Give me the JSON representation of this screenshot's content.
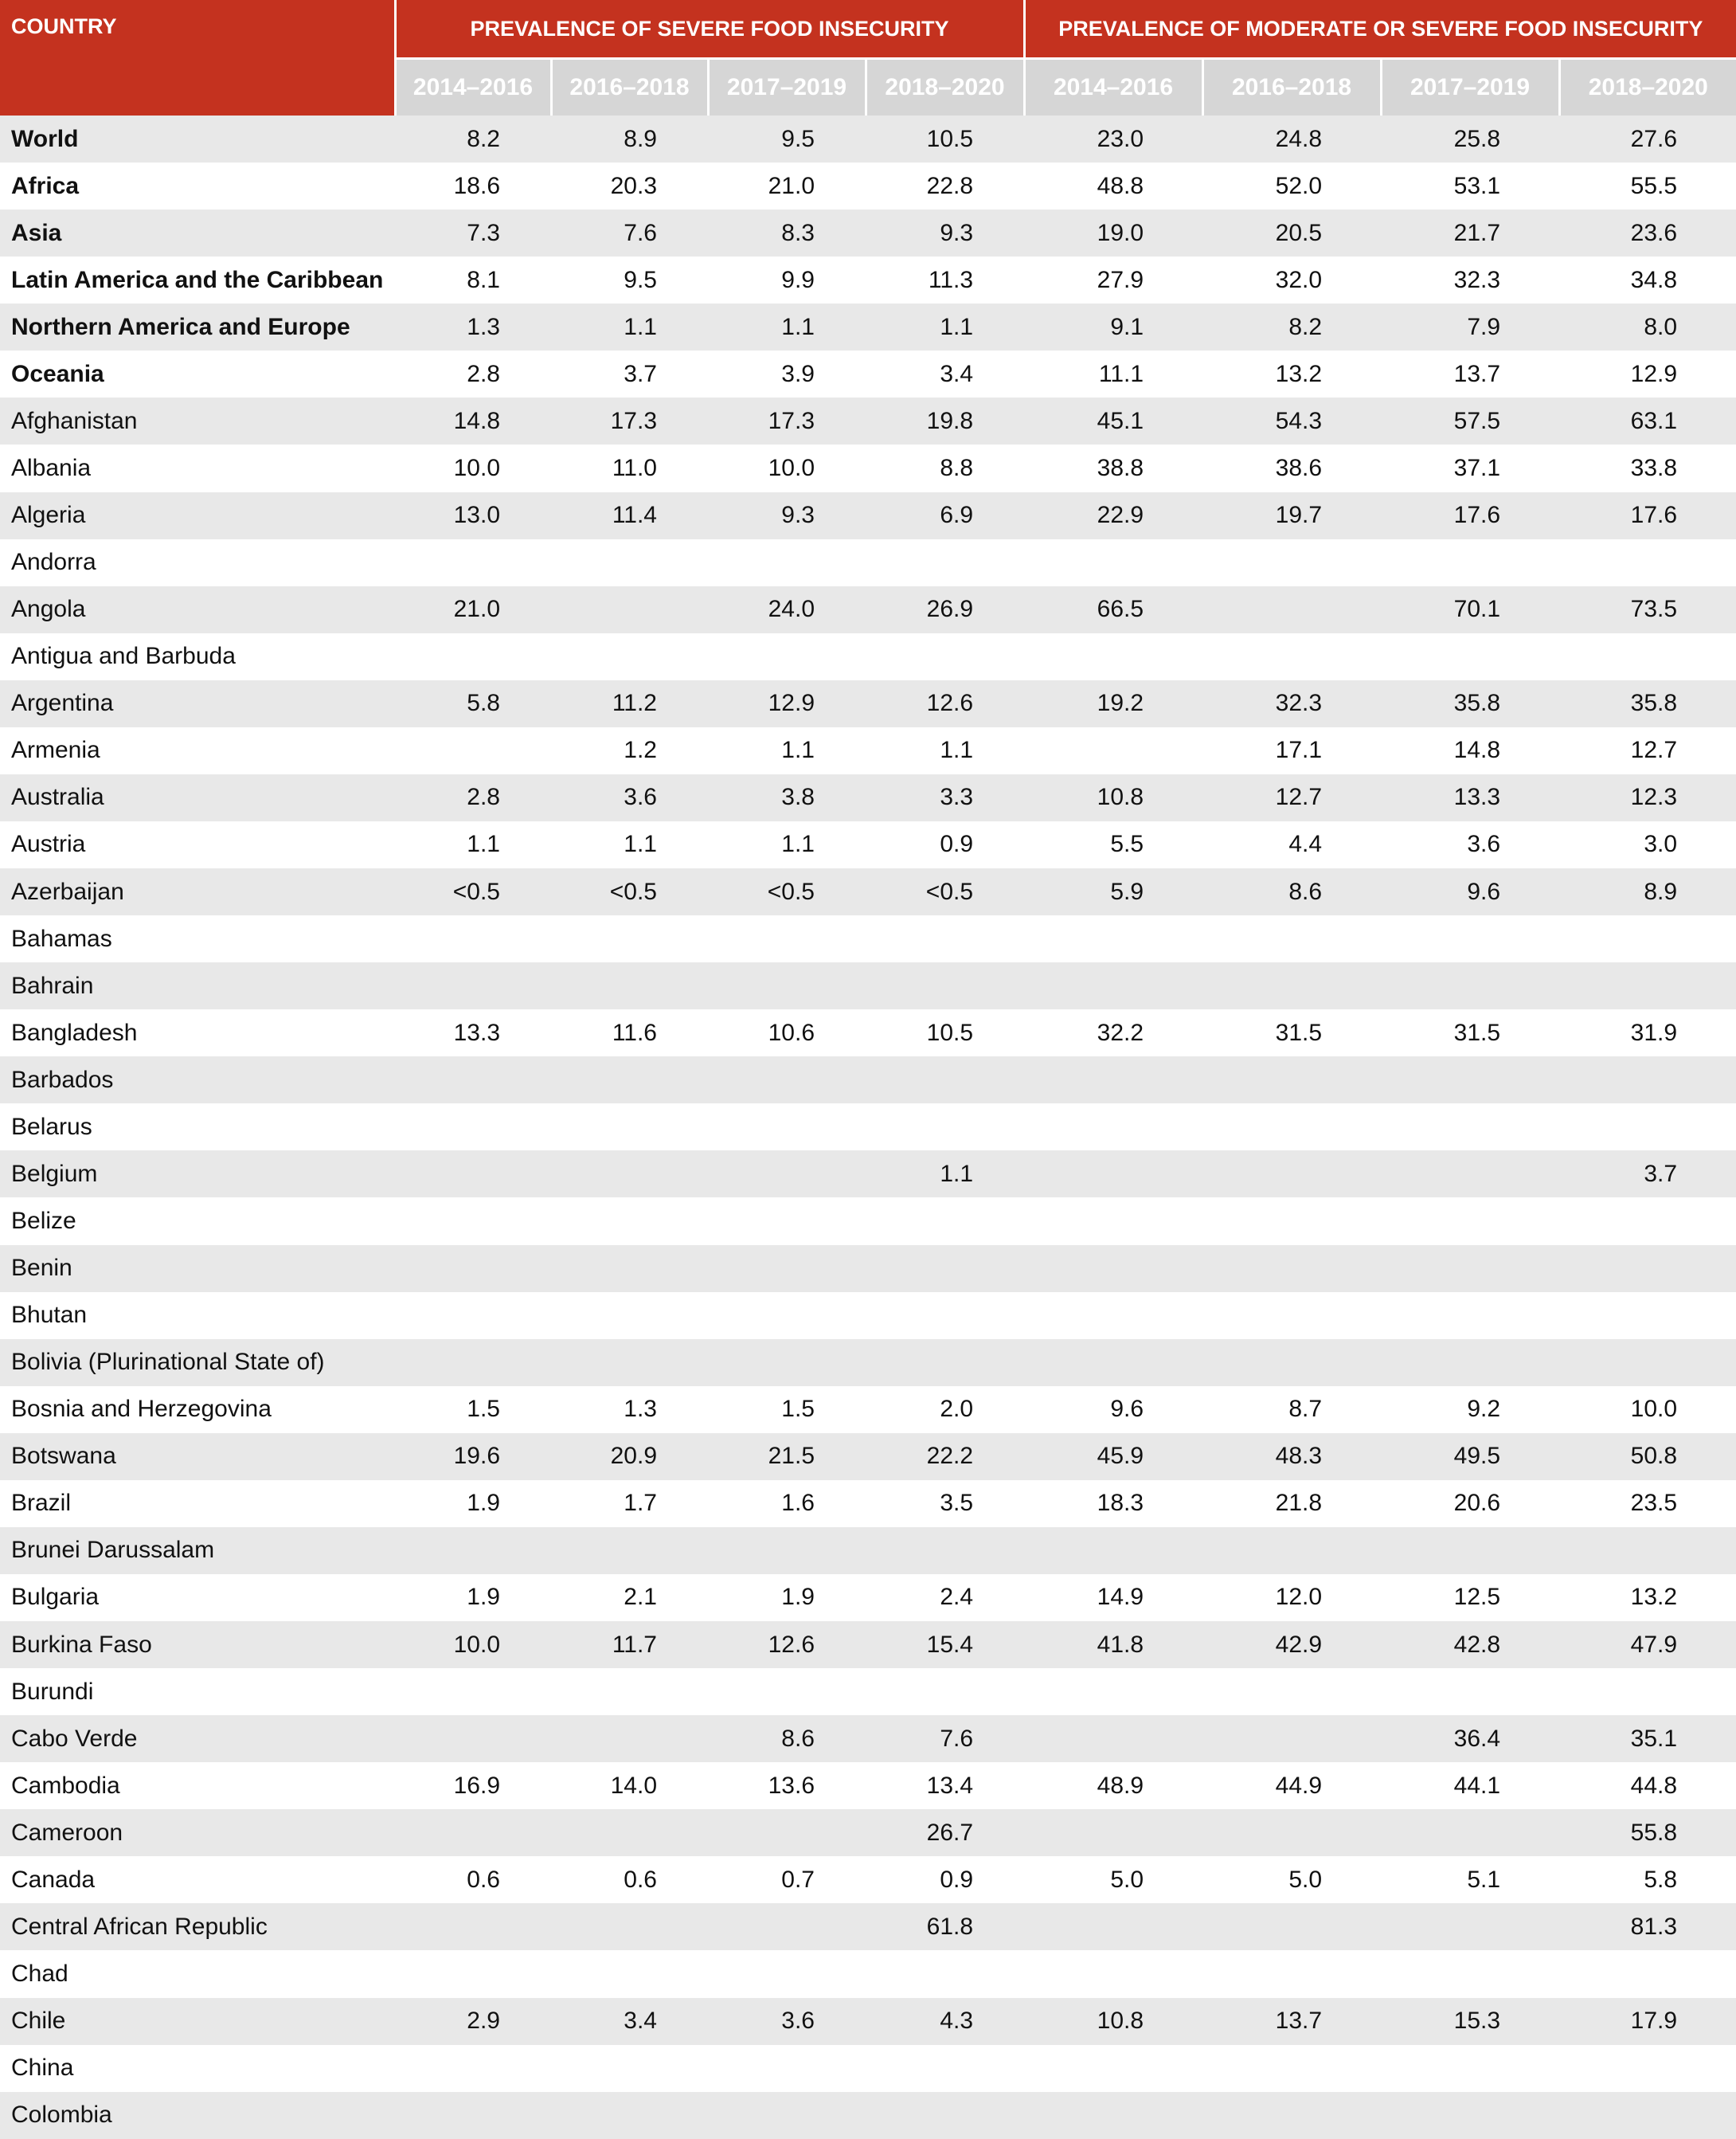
{
  "header": {
    "country": "COUNTRY",
    "severe": "PREVALENCE OF SEVERE FOOD INSECURITY",
    "moderate": "PREVALENCE OF MODERATE OR SEVERE FOOD INSECURITY",
    "severe_years": [
      "2014–2016",
      "2016–2018",
      "2017–2019",
      "2018–2020"
    ],
    "moderate_years": [
      "2014–2016",
      "2016–2018",
      "2017–2019",
      "2018–2020"
    ]
  },
  "table": {
    "region_rows": [
      {
        "country": "World",
        "values": [
          "8.2",
          "8.9",
          "9.5",
          "10.5",
          "23.0",
          "24.8",
          "25.8",
          "27.6"
        ]
      },
      {
        "country": "Africa",
        "values": [
          "18.6",
          "20.3",
          "21.0",
          "22.8",
          "48.8",
          "52.0",
          "53.1",
          "55.5"
        ]
      },
      {
        "country": "Asia",
        "values": [
          "7.3",
          "7.6",
          "8.3",
          "9.3",
          "19.0",
          "20.5",
          "21.7",
          "23.6"
        ]
      },
      {
        "country": "Latin America and the Caribbean",
        "values": [
          "8.1",
          "9.5",
          "9.9",
          "11.3",
          "27.9",
          "32.0",
          "32.3",
          "34.8"
        ]
      },
      {
        "country": "Northern America and Europe",
        "values": [
          "1.3",
          "1.1",
          "1.1",
          "1.1",
          "9.1",
          "8.2",
          "7.9",
          "8.0"
        ]
      },
      {
        "country": "Oceania",
        "values": [
          "2.8",
          "3.7",
          "3.9",
          "3.4",
          "11.1",
          "13.2",
          "13.7",
          "12.9"
        ]
      }
    ],
    "country_rows": [
      {
        "country": "Afghanistan",
        "values": [
          "14.8",
          "17.3",
          "17.3",
          "19.8",
          "45.1",
          "54.3",
          "57.5",
          "63.1"
        ]
      },
      {
        "country": "Albania",
        "values": [
          "10.0",
          "11.0",
          "10.0",
          "8.8",
          "38.8",
          "38.6",
          "37.1",
          "33.8"
        ]
      },
      {
        "country": "Algeria",
        "values": [
          "13.0",
          "11.4",
          "9.3",
          "6.9",
          "22.9",
          "19.7",
          "17.6",
          "17.6"
        ]
      },
      {
        "country": "Andorra",
        "values": [
          null,
          null,
          null,
          null,
          null,
          null,
          null,
          null
        ]
      },
      {
        "country": "Angola",
        "values": [
          "21.0",
          null,
          "24.0",
          "26.9",
          "66.5",
          null,
          "70.1",
          "73.5"
        ]
      },
      {
        "country": "Antigua and Barbuda",
        "values": [
          null,
          null,
          null,
          null,
          null,
          null,
          null,
          null
        ]
      },
      {
        "country": "Argentina",
        "values": [
          "5.8",
          "11.2",
          "12.9",
          "12.6",
          "19.2",
          "32.3",
          "35.8",
          "35.8"
        ]
      },
      {
        "country": "Armenia",
        "values": [
          null,
          "1.2",
          "1.1",
          "1.1",
          null,
          "17.1",
          "14.8",
          "12.7"
        ]
      },
      {
        "country": "Australia",
        "values": [
          "2.8",
          "3.6",
          "3.8",
          "3.3",
          "10.8",
          "12.7",
          "13.3",
          "12.3"
        ]
      },
      {
        "country": "Austria",
        "values": [
          "1.1",
          "1.1",
          "1.1",
          "0.9",
          "5.5",
          "4.4",
          "3.6",
          "3.0"
        ]
      },
      {
        "country": "Azerbaijan",
        "values": [
          "<0.5",
          "<0.5",
          "<0.5",
          "<0.5",
          "5.9",
          "8.6",
          "9.6",
          "8.9"
        ]
      },
      {
        "country": "Bahamas",
        "values": [
          null,
          null,
          null,
          null,
          null,
          null,
          null,
          null
        ]
      },
      {
        "country": "Bahrain",
        "values": [
          null,
          null,
          null,
          null,
          null,
          null,
          null,
          null
        ]
      },
      {
        "country": "Bangladesh",
        "values": [
          "13.3",
          "11.6",
          "10.6",
          "10.5",
          "32.2",
          "31.5",
          "31.5",
          "31.9"
        ]
      },
      {
        "country": "Barbados",
        "values": [
          null,
          null,
          null,
          null,
          null,
          null,
          null,
          null
        ]
      },
      {
        "country": "Belarus",
        "values": [
          null,
          null,
          null,
          null,
          null,
          null,
          null,
          null
        ]
      },
      {
        "country": "Belgium",
        "values": [
          null,
          null,
          null,
          "1.1",
          null,
          null,
          null,
          "3.7"
        ]
      },
      {
        "country": "Belize",
        "values": [
          null,
          null,
          null,
          null,
          null,
          null,
          null,
          null
        ]
      },
      {
        "country": "Benin",
        "values": [
          null,
          null,
          null,
          null,
          null,
          null,
          null,
          null
        ]
      },
      {
        "country": "Bhutan",
        "values": [
          null,
          null,
          null,
          null,
          null,
          null,
          null,
          null
        ]
      },
      {
        "country": "Bolivia (Plurinational State of)",
        "values": [
          null,
          null,
          null,
          null,
          null,
          null,
          null,
          null
        ]
      },
      {
        "country": "Bosnia and Herzegovina",
        "values": [
          "1.5",
          "1.3",
          "1.5",
          "2.0",
          "9.6",
          "8.7",
          "9.2",
          "10.0"
        ]
      },
      {
        "country": "Botswana",
        "values": [
          "19.6",
          "20.9",
          "21.5",
          "22.2",
          "45.9",
          "48.3",
          "49.5",
          "50.8"
        ]
      },
      {
        "country": "Brazil",
        "values": [
          "1.9",
          "1.7",
          "1.6",
          "3.5",
          "18.3",
          "21.8",
          "20.6",
          "23.5"
        ]
      },
      {
        "country": "Brunei Darussalam",
        "values": [
          null,
          null,
          null,
          null,
          null,
          null,
          null,
          null
        ]
      },
      {
        "country": "Bulgaria",
        "values": [
          "1.9",
          "2.1",
          "1.9",
          "2.4",
          "14.9",
          "12.0",
          "12.5",
          "13.2"
        ]
      },
      {
        "country": "Burkina Faso",
        "values": [
          "10.0",
          "11.7",
          "12.6",
          "15.4",
          "41.8",
          "42.9",
          "42.8",
          "47.9"
        ]
      },
      {
        "country": "Burundi",
        "values": [
          null,
          null,
          null,
          null,
          null,
          null,
          null,
          null
        ]
      },
      {
        "country": "Cabo Verde",
        "values": [
          null,
          null,
          "8.6",
          "7.6",
          null,
          null,
          "36.4",
          "35.1"
        ]
      },
      {
        "country": "Cambodia",
        "values": [
          "16.9",
          "14.0",
          "13.6",
          "13.4",
          "48.9",
          "44.9",
          "44.1",
          "44.8"
        ]
      },
      {
        "country": "Cameroon",
        "values": [
          null,
          null,
          null,
          "26.7",
          null,
          null,
          null,
          "55.8"
        ]
      },
      {
        "country": "Canada",
        "values": [
          "0.6",
          "0.6",
          "0.7",
          "0.9",
          "5.0",
          "5.0",
          "5.1",
          "5.8"
        ]
      },
      {
        "country": "Central African Republic",
        "values": [
          null,
          null,
          null,
          "61.8",
          null,
          null,
          null,
          "81.3"
        ]
      },
      {
        "country": "Chad",
        "values": [
          null,
          null,
          null,
          null,
          null,
          null,
          null,
          null
        ]
      },
      {
        "country": "Chile",
        "values": [
          "2.9",
          "3.4",
          "3.6",
          "4.3",
          "10.8",
          "13.7",
          "15.3",
          "17.9"
        ]
      },
      {
        "country": "China",
        "values": [
          null,
          null,
          null,
          null,
          null,
          null,
          null,
          null
        ]
      },
      {
        "country": "Colombia",
        "values": [
          null,
          null,
          null,
          null,
          null,
          null,
          null,
          null
        ]
      }
    ]
  }
}
